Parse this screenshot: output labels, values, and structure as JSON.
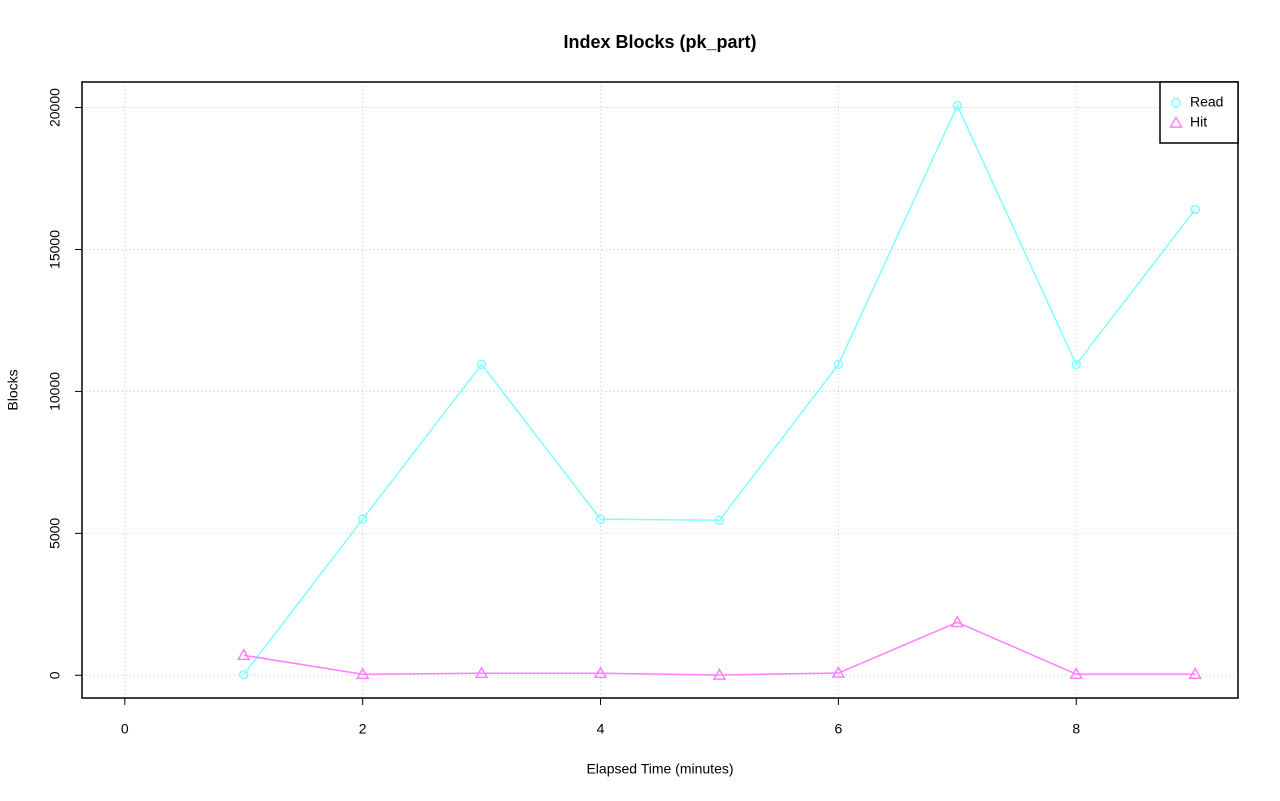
{
  "chart_data": {
    "type": "line",
    "title": "Index Blocks (pk_part)",
    "x_label": "Elapsed Time (minutes)",
    "y_label": "Blocks",
    "x": [
      1,
      2,
      3,
      4,
      5,
      6,
      7,
      8,
      9
    ],
    "series": [
      {
        "name": "Read",
        "color": "#80ffff",
        "marker": "circle",
        "values": [
          20,
          5500,
          10950,
          5500,
          5460,
          10950,
          20070,
          10950,
          16410
        ]
      },
      {
        "name": "Hit",
        "color": "#ff80ff",
        "marker": "triangle",
        "values": [
          704,
          35,
          70,
          70,
          10,
          80,
          1866,
          40,
          40
        ]
      }
    ],
    "xlim": [
      -0.36,
      9.36
    ],
    "ylim": [
      -800,
      20900
    ],
    "xticks": [
      0,
      2,
      4,
      6,
      8
    ],
    "yticks": [
      0,
      5000,
      10000,
      15000,
      20000
    ],
    "grid": true,
    "legend_position": "top-right"
  }
}
